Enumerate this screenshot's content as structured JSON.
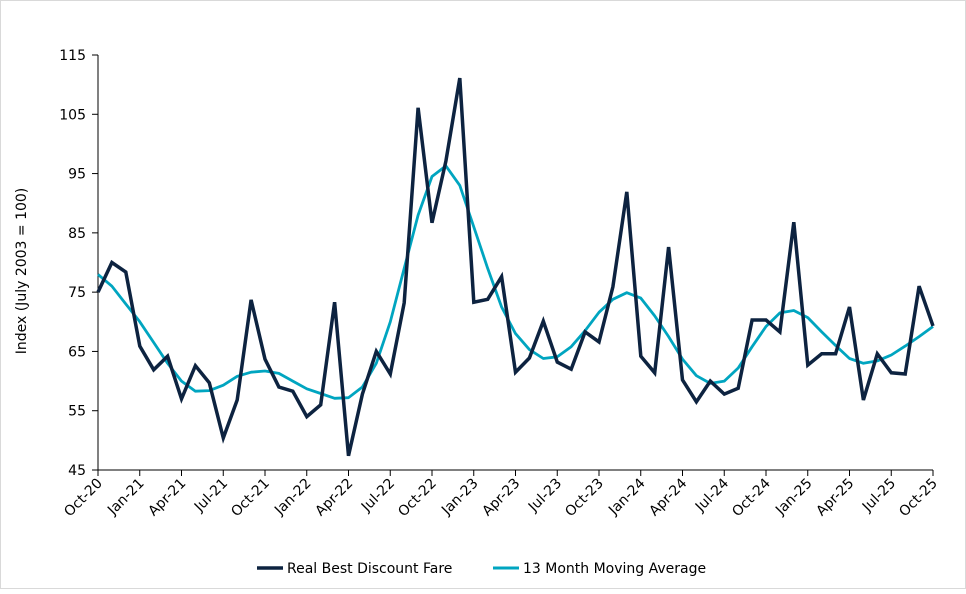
{
  "chart_data": {
    "type": "line",
    "title": "",
    "xlabel": "",
    "ylabel": "Index (July 2003 = 100)",
    "ylim": [
      45,
      115
    ],
    "yticks": [
      45,
      55,
      65,
      75,
      85,
      95,
      105,
      115
    ],
    "grid": false,
    "legend_position": "bottom",
    "x": [
      "Oct-20",
      "Nov-20",
      "Dec-20",
      "Jan-21",
      "Feb-21",
      "Mar-21",
      "Apr-21",
      "May-21",
      "Jun-21",
      "Jul-21",
      "Aug-21",
      "Sep-21",
      "Oct-21",
      "Nov-21",
      "Dec-21",
      "Jan-22",
      "Feb-22",
      "Mar-22",
      "Apr-22",
      "May-22",
      "Jun-22",
      "Jul-22",
      "Aug-22",
      "Sep-22",
      "Oct-22",
      "Nov-22",
      "Dec-22",
      "Jan-23",
      "Feb-23",
      "Mar-23",
      "Apr-23",
      "May-23",
      "Jun-23",
      "Jul-23",
      "Aug-23",
      "Sep-23",
      "Oct-23",
      "Nov-23",
      "Dec-23",
      "Jan-24",
      "Feb-24",
      "Mar-24",
      "Apr-24",
      "May-24",
      "Jun-24",
      "Jul-24",
      "Aug-24",
      "Sep-24",
      "Oct-24",
      "Nov-24",
      "Dec-24",
      "Jan-25",
      "Feb-25",
      "Mar-25",
      "Apr-25",
      "May-25",
      "Jun-25",
      "Jul-25",
      "Aug-25",
      "Sep-25",
      "Oct-25"
    ],
    "xtick_labels": [
      "Oct-20",
      "Jan-21",
      "Apr-21",
      "Jul-21",
      "Oct-21",
      "Jan-22",
      "Apr-22",
      "Jul-22",
      "Oct-22",
      "Jan-23",
      "Apr-23",
      "Jul-23",
      "Oct-23",
      "Jan-24",
      "Apr-24",
      "Jul-24",
      "Oct-24",
      "Jan-25",
      "Apr-25",
      "Jul-25",
      "Oct-25"
    ],
    "series": [
      {
        "name": "Real Best Discount Fare",
        "color": "#0d2340",
        "values": [
          75,
          80,
          78.4,
          65.9,
          61.9,
          64.2,
          57,
          62.6,
          59.7,
          50.4,
          56.8,
          73.7,
          63.7,
          59,
          58.3,
          54,
          56,
          73.3,
          47.4,
          57.8,
          65,
          61.2,
          73.2,
          106.1,
          86.7,
          97.1,
          111.1,
          73.3,
          73.8,
          77.6,
          61.5,
          63.9,
          70.1,
          63.2,
          62,
          68.3,
          66.6,
          75.9,
          91.9,
          64.2,
          61.4,
          82.6,
          60.2,
          56.5,
          60,
          57.8,
          58.8,
          70.3,
          70.3,
          68.3,
          86.8,
          62.7,
          64.6,
          64.6,
          72.5,
          56.8,
          64.6,
          61.4,
          61.2,
          76,
          69.3
        ]
      },
      {
        "name": "13 Month Moving Average",
        "color": "#00a5c0",
        "values": [
          78,
          76,
          73,
          70,
          66.5,
          63,
          60,
          58.3,
          58.4,
          59.3,
          60.8,
          61.5,
          61.7,
          61.3,
          60,
          58.7,
          57.9,
          57.1,
          57.2,
          59,
          63,
          70,
          79,
          88,
          94.5,
          96.3,
          93,
          86,
          79,
          72.5,
          68,
          65.3,
          63.8,
          64.1,
          65.8,
          68.5,
          71.6,
          73.8,
          74.9,
          74,
          71,
          67.5,
          63.7,
          60.9,
          59.6,
          60,
          62.2,
          65.8,
          69.2,
          71.5,
          71.9,
          70.7,
          68.3,
          66,
          63.8,
          63,
          63.4,
          64.4,
          65.9,
          67.5,
          69.2
        ]
      }
    ]
  }
}
